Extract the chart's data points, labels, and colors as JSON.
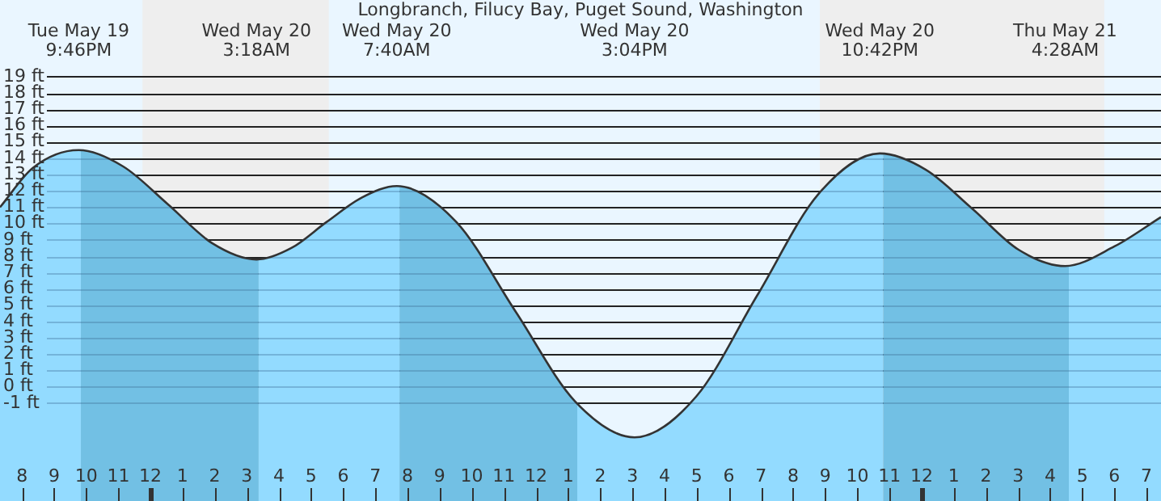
{
  "chart_data": {
    "type": "area",
    "title": "Longbranch, Filucy Bay, Puget Sound, Washington",
    "x": [
      "--05-19T19:19",
      "--05-19T20:20",
      "--05-19T21:46",
      "--05-19T23:09",
      "--05-20T00:32",
      "--05-20T01:55",
      "--05-20T03:18",
      "--05-20T04:23",
      "--05-20T05:29",
      "--05-20T06:35",
      "--05-20T07:40",
      "--05-20T09:31",
      "--05-20T11:22",
      "--05-20T13:13",
      "--05-20T15:04",
      "--05-20T16:59",
      "--05-20T18:53",
      "--05-20T20:47",
      "--05-20T22:42",
      "--05-21T00:08",
      "--05-21T01:35",
      "--05-21T03:01",
      "--05-21T04:28",
      "--05-21T06:00",
      "--05-21T07:27"
    ],
    "series": [
      {
        "color": "#93dbff",
        "values": [
          11.0,
          13.4,
          14.5,
          13.5,
          11.2,
          8.8,
          7.8,
          8.5,
          10.1,
          11.6,
          12.3,
          10.1,
          4.6,
          -0.9,
          -3.1,
          -0.6,
          5.6,
          11.8,
          14.3,
          13.3,
          10.9,
          8.4,
          7.4,
          8.6,
          10.4
        ]
      }
    ],
    "xlim": [
      "--05-19T19:19",
      "--05-21T07:27"
    ],
    "xticks": [
      {
        "value": "--05-19T20:00",
        "label": "8"
      },
      {
        "value": "--05-19T21:00",
        "label": "9"
      },
      {
        "value": "--05-19T22:00",
        "label": "10"
      },
      {
        "value": "--05-19T23:00",
        "label": "11"
      },
      {
        "value": "--05-20T00:00",
        "label": "12"
      },
      {
        "value": "--05-20T01:00",
        "label": "1"
      },
      {
        "value": "--05-20T02:00",
        "label": "2"
      },
      {
        "value": "--05-20T03:00",
        "label": "3"
      },
      {
        "value": "--05-20T04:00",
        "label": "4"
      },
      {
        "value": "--05-20T05:00",
        "label": "5"
      },
      {
        "value": "--05-20T06:00",
        "label": "6"
      },
      {
        "value": "--05-20T07:00",
        "label": "7"
      },
      {
        "value": "--05-20T08:00",
        "label": "8"
      },
      {
        "value": "--05-20T09:00",
        "label": "9"
      },
      {
        "value": "--05-20T10:00",
        "label": "10"
      },
      {
        "value": "--05-20T11:00",
        "label": "11"
      },
      {
        "value": "--05-20T12:00",
        "label": "12"
      },
      {
        "value": "--05-20T13:00",
        "label": "1"
      },
      {
        "value": "--05-20T14:00",
        "label": "2"
      },
      {
        "value": "--05-20T15:00",
        "label": "3"
      },
      {
        "value": "--05-20T16:00",
        "label": "4"
      },
      {
        "value": "--05-20T17:00",
        "label": "5"
      },
      {
        "value": "--05-20T18:00",
        "label": "6"
      },
      {
        "value": "--05-20T19:00",
        "label": "7"
      },
      {
        "value": "--05-20T20:00",
        "label": "8"
      },
      {
        "value": "--05-20T21:00",
        "label": "9"
      },
      {
        "value": "--05-20T22:00",
        "label": "10"
      },
      {
        "value": "--05-20T23:00",
        "label": "11"
      },
      {
        "value": "--05-21T00:00",
        "label": "12"
      },
      {
        "value": "--05-21T01:00",
        "label": "1"
      },
      {
        "value": "--05-21T02:00",
        "label": "2"
      },
      {
        "value": "--05-21T03:00",
        "label": "3"
      },
      {
        "value": "--05-21T04:00",
        "label": "4"
      },
      {
        "value": "--05-21T05:00",
        "label": "5"
      },
      {
        "value": "--05-21T06:00",
        "label": "6"
      },
      {
        "value": "--05-21T07:00",
        "label": "7"
      }
    ],
    "ylim": [
      -7,
      23.7
    ],
    "yticks": [
      {
        "value": -1,
        "label": "-1 ft"
      },
      {
        "value": 0,
        "label": "0 ft"
      },
      {
        "value": 1,
        "label": "1 ft"
      },
      {
        "value": 2,
        "label": "2 ft"
      },
      {
        "value": 3,
        "label": "3 ft"
      },
      {
        "value": 4,
        "label": "4 ft"
      },
      {
        "value": 5,
        "label": "5 ft"
      },
      {
        "value": 6,
        "label": "6 ft"
      },
      {
        "value": 7,
        "label": "7 ft"
      },
      {
        "value": 8,
        "label": "8 ft"
      },
      {
        "value": 9,
        "label": "9 ft"
      },
      {
        "value": 10,
        "label": "10 ft"
      },
      {
        "value": 11,
        "label": "11 ft"
      },
      {
        "value": 12,
        "label": "12 ft"
      },
      {
        "value": 13,
        "label": "13 ft"
      },
      {
        "value": 14,
        "label": "14 ft"
      },
      {
        "value": 15,
        "label": "15 ft"
      },
      {
        "value": 16,
        "label": "16 ft"
      },
      {
        "value": 17,
        "label": "17 ft"
      },
      {
        "value": 18,
        "label": "18 ft"
      },
      {
        "value": 19,
        "label": "19 ft"
      }
    ],
    "grid": "y",
    "bands": [
      {
        "axis": "x",
        "from": "--05-19T23:45",
        "to": "--05-20T05:33",
        "color": "#eeeeee"
      },
      {
        "axis": "x",
        "from": "--05-20T20:50",
        "to": "--05-21T05:41",
        "color": "#eeeeee"
      },
      {
        "axis": "x",
        "from": "--05-19T21:50",
        "to": "--05-20T03:22",
        "color": "#72c0e4"
      },
      {
        "axis": "x",
        "from": "--05-20T07:45",
        "to": "--05-20T13:17",
        "color": "#72c0e4"
      },
      {
        "axis": "x",
        "from": "--05-20T22:48",
        "to": "--05-21T04:35",
        "color": "#72c0e4"
      }
    ],
    "annotations": [
      "Tue May 19\n9:46PM",
      "Wed May 20\n3:18AM",
      "Wed May 20\n7:40AM",
      "Wed May 20\n3:04PM",
      "Wed May 20\n10:42PM",
      "Thu May 21\n4:28AM"
    ]
  }
}
